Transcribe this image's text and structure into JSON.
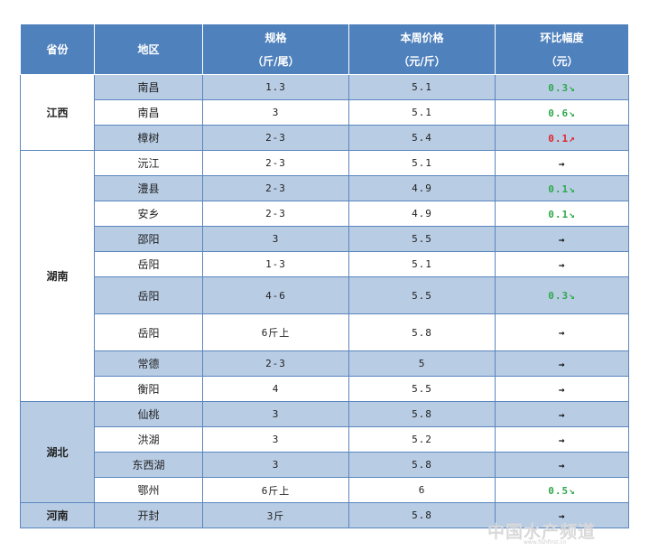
{
  "header": {
    "province": "省份",
    "region": "地区",
    "spec": "规格",
    "spec_unit": "（斤/尾）",
    "price": "本周价格",
    "price_unit": "（元/斤）",
    "change": "环比幅度",
    "change_unit": "（元）"
  },
  "groups": [
    {
      "province": "江西",
      "shaded": false,
      "rows": [
        {
          "region": "南昌",
          "spec": "1.3",
          "price": "5.1",
          "change": "0.3↘",
          "dir": "down",
          "shaded": true
        },
        {
          "region": "南昌",
          "spec": "3",
          "price": "5.1",
          "change": "0.6↘",
          "dir": "down",
          "shaded": false
        },
        {
          "region": "樟树",
          "spec": "2-3",
          "price": "5.4",
          "change": "0.1↗",
          "dir": "up",
          "shaded": true
        }
      ]
    },
    {
      "province": "湖南",
      "shaded": false,
      "rows": [
        {
          "region": "沅江",
          "spec": "2-3",
          "price": "5.1",
          "change": "→",
          "dir": "flat",
          "shaded": false
        },
        {
          "region": "澧县",
          "spec": "2-3",
          "price": "4.9",
          "change": "0.1↘",
          "dir": "down",
          "shaded": true
        },
        {
          "region": "安乡",
          "spec": "2-3",
          "price": "4.9",
          "change": "0.1↘",
          "dir": "down",
          "shaded": false
        },
        {
          "region": "邵阳",
          "spec": "3",
          "price": "5.5",
          "change": "→",
          "dir": "flat",
          "shaded": true
        },
        {
          "region": "岳阳",
          "spec": "1-3",
          "price": "5.1",
          "change": "→",
          "dir": "flat",
          "shaded": false
        },
        {
          "region": "岳阳",
          "spec": "4-6",
          "price": "5.5",
          "change": "0.3↘",
          "dir": "down",
          "shaded": true,
          "tall": true
        },
        {
          "region": "岳阳",
          "spec": "6斤上",
          "price": "5.8",
          "change": "→",
          "dir": "flat",
          "shaded": false,
          "tall": true
        },
        {
          "region": "常德",
          "spec": "2-3",
          "price": "5",
          "change": "→",
          "dir": "flat",
          "shaded": true
        },
        {
          "region": "衡阳",
          "spec": "4",
          "price": "5.5",
          "change": "→",
          "dir": "flat",
          "shaded": false
        }
      ]
    },
    {
      "province": "湖北",
      "shaded": true,
      "rows": [
        {
          "region": "仙桃",
          "spec": "3",
          "price": "5.8",
          "change": "→",
          "dir": "flat",
          "shaded": true
        },
        {
          "region": "洪湖",
          "spec": "3",
          "price": "5.2",
          "change": "→",
          "dir": "flat",
          "shaded": false
        },
        {
          "region": "东西湖",
          "spec": "3",
          "price": "5.8",
          "change": "→",
          "dir": "flat",
          "shaded": true
        },
        {
          "region": "鄂州",
          "spec": "6斤上",
          "price": "6",
          "change": "0.5↘",
          "dir": "down",
          "shaded": false
        }
      ]
    },
    {
      "province": "河南",
      "shaded": true,
      "rows": [
        {
          "region": "开封",
          "spec": "3斤",
          "price": "5.8",
          "change": "→",
          "dir": "flat",
          "shaded": true
        }
      ]
    }
  ],
  "watermark": {
    "text": "中国水产频道",
    "sub": "www.fishfirst.cn"
  }
}
